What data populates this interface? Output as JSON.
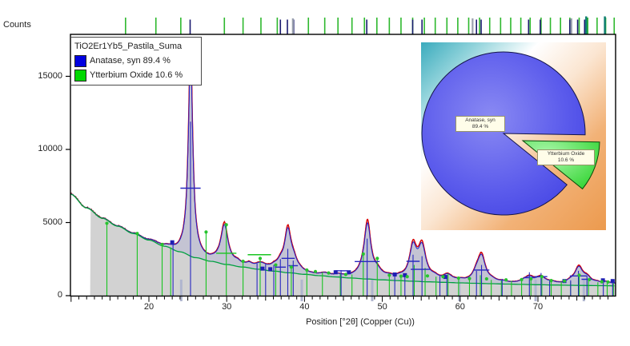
{
  "window": {
    "background": "#ffffff"
  },
  "axes": {
    "y_axis_label": "Counts",
    "x_axis_label": "Position [°2θ] (Copper (Cu))",
    "x_tick_labels": [
      "20",
      "30",
      "40",
      "50",
      "60",
      "70"
    ],
    "y_tick_labels": [
      "0",
      "5000",
      "10000",
      "15000"
    ]
  },
  "legend": {
    "title": "TiO2Er1Yb5_Pastila_Suma",
    "items": [
      {
        "label": "Anatase, syn 89.4 %",
        "color": "#0000e0"
      },
      {
        "label": "Ytterbium Oxide 10.6 %",
        "color": "#00d800"
      }
    ]
  },
  "pie": {
    "slices": [
      {
        "name": "Anatase, syn",
        "pct_label": "89.4 %",
        "value": 89.4,
        "color": "#4c4cе8",
        "color_hex": "#4c4ce8"
      },
      {
        "name": "Ytterbium Oxide",
        "pct_label": "10.6 %",
        "value": 10.6,
        "color_hex": "#3cd43c"
      }
    ],
    "background_gradient": [
      "#3aabbd",
      "#ffffff",
      "#ec9a4e"
    ]
  },
  "chart_data": {
    "type": "line",
    "title": "TiO2Er1Yb5_Pastila_Suma",
    "xlabel": "Position [°2θ] (Copper (Cu))",
    "ylabel": "Counts",
    "xlim": [
      9.9,
      80.0
    ],
    "ylim": [
      0,
      17800
    ],
    "x_ticks": [
      20,
      30,
      40,
      50,
      60,
      70
    ],
    "y_ticks": [
      0,
      5000,
      10000,
      15000
    ],
    "grid": false,
    "legend_position": "top-left",
    "fill_start_deg": 12.45,
    "colors": {
      "measured_fill": "#d2d2d2",
      "raw_line": "#8b1f1f",
      "calculated_line": "#e00000",
      "observed_line": "#2222cc",
      "background_line": "#00a040",
      "anatase_marker": "#2828c0",
      "ytterbium_marker": "#19c421",
      "anatase_tick": "#1a1a70",
      "ytterbium_tick": "#2db82d"
    },
    "background_points": [
      [
        9.9,
        6950
      ],
      [
        12,
        6000
      ],
      [
        14,
        5300
      ],
      [
        16,
        4750
      ],
      [
        18,
        4250
      ],
      [
        20,
        3800
      ],
      [
        22,
        3380
      ],
      [
        24,
        3000
      ],
      [
        26,
        2600
      ],
      [
        28,
        2350
      ],
      [
        30,
        2130
      ],
      [
        32,
        1960
      ],
      [
        34,
        1810
      ],
      [
        36,
        1680
      ],
      [
        38,
        1565
      ],
      [
        40,
        1460
      ],
      [
        42,
        1365
      ],
      [
        44,
        1280
      ],
      [
        46,
        1205
      ],
      [
        48,
        1140
      ],
      [
        50,
        1080
      ],
      [
        52,
        1030
      ],
      [
        54,
        985
      ],
      [
        56,
        945
      ],
      [
        58,
        910
      ],
      [
        60,
        875
      ],
      [
        62,
        845
      ],
      [
        64,
        818
      ],
      [
        66,
        792
      ],
      [
        68,
        768
      ],
      [
        70,
        748
      ],
      [
        72,
        728
      ],
      [
        74,
        712
      ],
      [
        76,
        697
      ],
      [
        78,
        684
      ],
      [
        80,
        672
      ]
    ],
    "peaks": [
      [
        25.35,
        14400,
        0.34
      ],
      [
        29.7,
        2750,
        0.55
      ],
      [
        31.4,
        200,
        0.5
      ],
      [
        32.9,
        180,
        0.4
      ],
      [
        34.35,
        330,
        0.9
      ],
      [
        36.1,
        200,
        0.6
      ],
      [
        36.95,
        420,
        0.5
      ],
      [
        37.85,
        2850,
        0.5
      ],
      [
        38.6,
        650,
        0.55
      ],
      [
        39.4,
        120,
        0.5
      ],
      [
        42.6,
        130,
        0.6
      ],
      [
        44.3,
        110,
        0.6
      ],
      [
        47.6,
        350,
        0.8
      ],
      [
        48.1,
        3650,
        0.5
      ],
      [
        49.35,
        450,
        0.7
      ],
      [
        50.9,
        130,
        0.6
      ],
      [
        52.2,
        120,
        0.6
      ],
      [
        53.95,
        2250,
        0.55
      ],
      [
        55.1,
        2300,
        0.6
      ],
      [
        56.7,
        200,
        0.6
      ],
      [
        58.4,
        420,
        0.7
      ],
      [
        60.0,
        100,
        0.6
      ],
      [
        62.1,
        500,
        0.6
      ],
      [
        62.75,
        1800,
        0.6
      ],
      [
        64.1,
        130,
        0.6
      ],
      [
        65.5,
        100,
        0.6
      ],
      [
        68.2,
        150,
        0.7
      ],
      [
        68.95,
        420,
        0.7
      ],
      [
        70.4,
        480,
        0.7
      ],
      [
        71.8,
        120,
        0.6
      ],
      [
        74.2,
        200,
        0.7
      ],
      [
        75.25,
        1150,
        0.6
      ],
      [
        76.3,
        450,
        0.7
      ],
      [
        77.6,
        120,
        0.5
      ],
      [
        78.7,
        180,
        0.5
      ],
      [
        79.6,
        140,
        0.5
      ]
    ],
    "phases": [
      {
        "name": "Anatase, syn",
        "weight_pct": 89.4,
        "top_ticks": [
          25.3,
          36.9,
          37.8,
          38.6,
          48.0,
          53.9,
          55.1,
          62.1,
          62.7,
          68.8,
          70.3,
          74.1,
          75.1,
          76.0
        ],
        "line_markers": [
          [
            23.1,
            3500
          ],
          [
            25.35,
            11900
          ],
          [
            33.9,
            2200
          ],
          [
            35.0,
            2150
          ],
          [
            36.05,
            2100
          ],
          [
            36.9,
            2500
          ],
          [
            37.85,
            3200
          ],
          [
            38.55,
            2400
          ],
          [
            44.7,
            1750
          ],
          [
            48.05,
            3900
          ],
          [
            51.6,
            1550
          ],
          [
            52.9,
            1500
          ],
          [
            53.95,
            2800
          ],
          [
            55.1,
            2700
          ],
          [
            57.4,
            1350
          ],
          [
            58.3,
            1400
          ],
          [
            62.1,
            1700
          ],
          [
            62.75,
            2100
          ],
          [
            65.4,
            1150
          ],
          [
            68.9,
            1600
          ],
          [
            70.4,
            1550
          ],
          [
            71.5,
            1100
          ],
          [
            74.2,
            1050
          ],
          [
            75.2,
            1700
          ],
          [
            76.3,
            1350
          ],
          [
            78.4,
            1050
          ],
          [
            79.6,
            1000
          ]
        ],
        "square_markers": [
          [
            23.0,
            3650
          ],
          [
            34.6,
            1850
          ],
          [
            35.6,
            1810
          ],
          [
            44.0,
            1600
          ],
          [
            45.7,
            1600
          ],
          [
            51.6,
            1450
          ],
          [
            52.9,
            1400
          ],
          [
            58.1,
            1280
          ],
          [
            73.4,
            1000
          ],
          [
            78.35,
            1050
          ],
          [
            79.6,
            1000
          ]
        ],
        "cross_markers": [
          [
            25.35,
            7350,
            2.6
          ],
          [
            36.9,
            1950,
            1.4
          ],
          [
            37.9,
            2550,
            1.7
          ],
          [
            38.55,
            2050,
            1.2
          ],
          [
            44.7,
            1700,
            1.6
          ],
          [
            48.05,
            2330,
            3.2
          ],
          [
            53.95,
            2350,
            1.7
          ],
          [
            54.9,
            1800,
            2.5
          ],
          [
            62.75,
            1750,
            2.0
          ],
          [
            68.9,
            1230,
            1.5
          ],
          [
            70.4,
            1300,
            1.6
          ],
          [
            75.2,
            1350,
            2.2
          ],
          [
            76.3,
            1120,
            1.4
          ]
        ]
      },
      {
        "name": "Ytterbium Oxide",
        "weight_pct": 10.6,
        "top_ticks": [
          17.0,
          20.9,
          24.1,
          29.7,
          32.1,
          34.4,
          36.5,
          40.5,
          42.6,
          44.3,
          46.1,
          47.7,
          49.3,
          50.9,
          52.4,
          53.9,
          55.4,
          56.8,
          58.3,
          59.7,
          61.1,
          62.5,
          63.8,
          65.2,
          66.5,
          67.8,
          69.0,
          70.4,
          71.6,
          72.9,
          74.1,
          75.3,
          76.4,
          77.6,
          78.7,
          79.8
        ],
        "line_markers": [
          [
            14.6,
            4900
          ],
          [
            18.5,
            4200
          ],
          [
            21.7,
            3450
          ],
          [
            22.8,
            3300
          ],
          [
            27.35,
            4300
          ],
          [
            29.95,
            4800
          ],
          [
            32.1,
            2300
          ],
          [
            34.3,
            2500
          ],
          [
            36.3,
            2050
          ],
          [
            38.3,
            1900
          ],
          [
            40.3,
            1700
          ],
          [
            42.3,
            1600
          ],
          [
            44.6,
            1500
          ],
          [
            46.1,
            1450
          ],
          [
            47.55,
            2800
          ],
          [
            49.35,
            2500
          ],
          [
            50.9,
            1350
          ],
          [
            52.4,
            1280
          ],
          [
            54.1,
            2100
          ],
          [
            55.5,
            1900
          ],
          [
            56.9,
            1300
          ],
          [
            58.45,
            1500
          ],
          [
            59.8,
            1150
          ],
          [
            61.2,
            1120
          ],
          [
            62.6,
            1400
          ],
          [
            64.0,
            1080
          ],
          [
            65.3,
            1040
          ],
          [
            66.6,
            1020
          ],
          [
            67.9,
            1050
          ],
          [
            69.1,
            1100
          ],
          [
            70.5,
            1250
          ],
          [
            71.7,
            980
          ],
          [
            73.0,
            950
          ],
          [
            74.2,
            950
          ],
          [
            75.3,
            1350
          ],
          [
            76.5,
            1050
          ],
          [
            77.7,
            920
          ],
          [
            78.9,
            900
          ],
          [
            79.7,
            880
          ]
        ],
        "dot_markers": [
          [
            14.6,
            4950
          ],
          [
            18.5,
            4250
          ],
          [
            21.7,
            3500
          ],
          [
            27.35,
            4350
          ],
          [
            29.95,
            4850
          ],
          [
            32.1,
            2350
          ],
          [
            34.3,
            2550
          ],
          [
            36.3,
            2100
          ],
          [
            38.3,
            1950
          ],
          [
            40.3,
            1750
          ],
          [
            41.4,
            1650
          ],
          [
            43.1,
            1550
          ],
          [
            45.3,
            1450
          ],
          [
            47.55,
            2850
          ],
          [
            49.35,
            2550
          ],
          [
            50.9,
            1400
          ],
          [
            52.4,
            1330
          ],
          [
            53.2,
            1300
          ],
          [
            55.8,
            1350
          ],
          [
            57.8,
            1300
          ],
          [
            59.8,
            1200
          ],
          [
            61.2,
            1170
          ],
          [
            63.4,
            1150
          ],
          [
            65.9,
            1080
          ],
          [
            67.9,
            1100
          ],
          [
            69.1,
            1150
          ],
          [
            70.5,
            1300
          ],
          [
            71.7,
            1030
          ],
          [
            73.4,
            1000
          ],
          [
            75.3,
            1400
          ],
          [
            76.6,
            1100
          ],
          [
            78.2,
            950
          ],
          [
            79.0,
            940
          ]
        ],
        "cross_markers": [
          [
            29.95,
            2900,
            2.6
          ],
          [
            34.2,
            2800,
            3.0
          ]
        ]
      }
    ],
    "extra_top_ticks": {
      "gray": [
        38.5,
        61.6,
        74.3
      ],
      "teal": [
        76.2,
        78.6
      ]
    },
    "highlight_marks_deg": [
      24.15,
      39.65,
      48.7,
      59.9,
      69.7,
      75.9
    ]
  }
}
